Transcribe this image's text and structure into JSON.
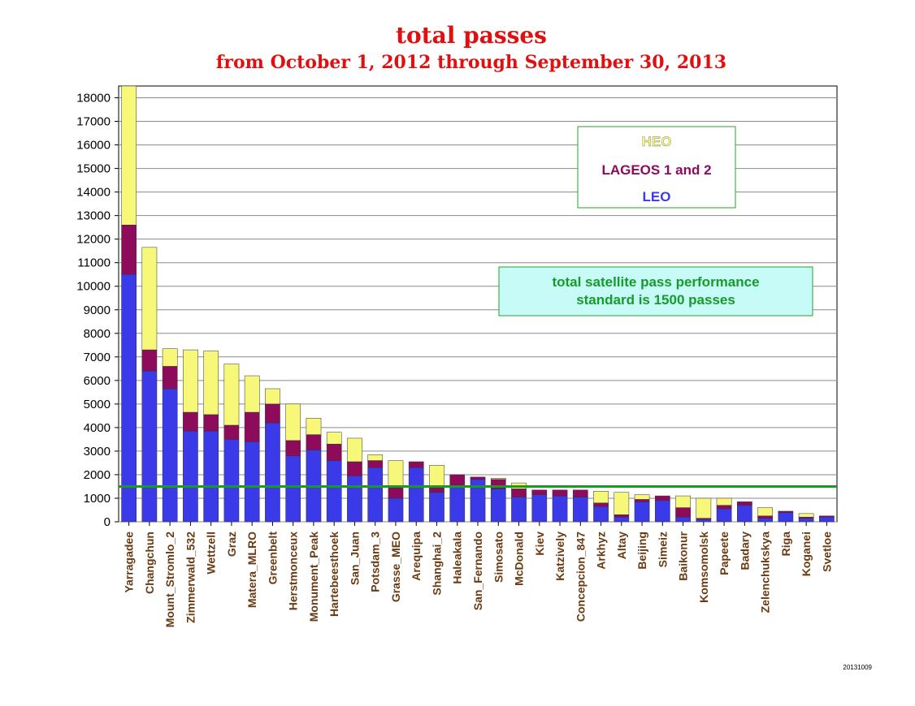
{
  "chart_data": {
    "type": "bar",
    "stacked": true,
    "title": "total passes",
    "subtitle": "from October 1, 2012 through  September 30, 2013",
    "xlabel": "",
    "ylabel": "",
    "ylim": [
      0,
      18500
    ],
    "y_ticks": [
      0,
      1000,
      2000,
      3000,
      4000,
      5000,
      6000,
      7000,
      8000,
      9000,
      10000,
      11000,
      12000,
      13000,
      14000,
      15000,
      16000,
      17000,
      18000
    ],
    "grid": true,
    "legend_position": "top-right",
    "categories": [
      "Yarragadee",
      "Changchun",
      "Mount_Stromlo_2",
      "Zimmerwald_532",
      "Wettzell",
      "Graz",
      "Matera_MLRO",
      "Greenbelt",
      "Herstmonceux",
      "Monument_Peak",
      "Hartebeesthoek",
      "San_Juan",
      "Potsdam_3",
      "Grasse_MEO",
      "Arequipa",
      "Shanghai_2",
      "Haleakala",
      "San_Fernando",
      "Simosato",
      "McDonald",
      "Kiev",
      "Katzively",
      "Concepcion_847",
      "Arkhyz",
      "Altay",
      "Beijing",
      "Simeiz",
      "Baikonur",
      "Komsomolsk",
      "Papeete",
      "Badary",
      "Zelenchukskya",
      "Riga",
      "Koganei",
      "Svetloe"
    ],
    "series": [
      {
        "name": "LEO",
        "color": "#3a3ae8",
        "values": [
          10500,
          6400,
          5650,
          3850,
          3850,
          3500,
          3400,
          4200,
          2800,
          3050,
          2600,
          1950,
          2300,
          1000,
          2300,
          1250,
          1550,
          1800,
          1400,
          1050,
          1150,
          1100,
          1050,
          650,
          200,
          850,
          900,
          200,
          100,
          550,
          700,
          150,
          400,
          150,
          200
        ]
      },
      {
        "name": "LAGEOS 1 and 2",
        "color": "#8e0b5c",
        "values": [
          2100,
          900,
          950,
          800,
          700,
          600,
          1250,
          800,
          650,
          650,
          700,
          600,
          300,
          450,
          250,
          200,
          450,
          100,
          400,
          350,
          200,
          250,
          300,
          150,
          100,
          100,
          200,
          400,
          50,
          150,
          150,
          100,
          50,
          50,
          50
        ]
      },
      {
        "name": "HEO",
        "color": "#f7f77a",
        "values": [
          5900,
          4350,
          750,
          2650,
          2700,
          2600,
          1550,
          650,
          1550,
          700,
          500,
          1000,
          250,
          1150,
          0,
          950,
          0,
          0,
          50,
          250,
          0,
          0,
          0,
          500,
          950,
          200,
          0,
          500,
          850,
          300,
          0,
          350,
          0,
          150,
          0
        ]
      }
    ],
    "reference_line": {
      "value": 1500,
      "color": "#1a9a22"
    },
    "legend_entries": [
      {
        "label": "HEO",
        "color": "#f7f77a"
      },
      {
        "label": "LAGEOS 1 and 2",
        "color": "#8e0b5c"
      },
      {
        "label": "LEO",
        "color": "#3a3ae8"
      }
    ],
    "annotation": {
      "line1": "total satellite pass performance",
      "line2": "standard is 1500 passes"
    },
    "footnote": "20131009"
  }
}
